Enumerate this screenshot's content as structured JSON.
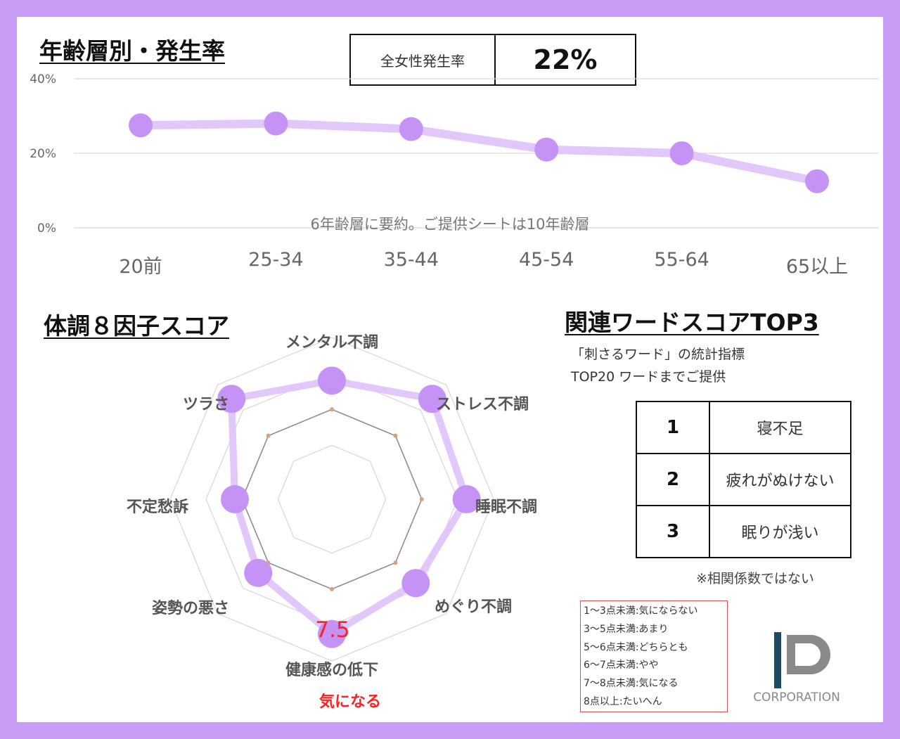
{
  "sections": {
    "age_heading": "年齢層別・発生率",
    "radar_heading": "体調８因子スコア",
    "words_heading": "関連ワードスコアTOP3"
  },
  "overall_rate": {
    "label": "全女性発生率",
    "value": "22%"
  },
  "age_note": "6年齢層に要約。ご提供シートは10年齢層",
  "words_desc": [
    "「刺さるワード」の統計指標",
    "TOP20 ワードまでご提供"
  ],
  "top_words": [
    {
      "rank": "1",
      "word": "寝不足"
    },
    {
      "rank": "2",
      "word": "疲れがぬけない"
    },
    {
      "rank": "3",
      "word": "眠りが浅い"
    }
  ],
  "words_note": "※相関係数ではない",
  "score_legend": [
    "1～3点未満:気にならない",
    "3～5点未満:あまり",
    "5～6点未満:どちらとも",
    "6～7点未満:やや",
    "7～8点未満:気になる",
    "8点以上:たいへん"
  ],
  "highlight": {
    "value_label": "7.5",
    "level_label": "気になる",
    "color": "#ff2020"
  },
  "logo": {
    "text": "CORPORATION"
  },
  "colors": {
    "accent": "#c99cf5",
    "line": "#e2c8fa",
    "point": "#c592f5"
  },
  "chart_data": [
    {
      "type": "line",
      "categories": [
        "20前",
        "25-34",
        "35-44",
        "45-54",
        "55-64",
        "65以上"
      ],
      "series": [
        {
          "values": [
            27.5,
            28,
            26.5,
            21,
            20,
            12.5
          ]
        }
      ],
      "yticks": [
        "0%",
        "20%",
        "40%"
      ],
      "ylim": [
        0,
        40
      ],
      "grid": true
    },
    {
      "type": "radar",
      "axes": [
        "メンタル不調",
        "ストレス不調",
        "睡眠不調",
        "めぐり不調",
        "健康感の低下",
        "姿勢の悪さ",
        "不定愁訴",
        "ツラさ"
      ],
      "series": [
        {
          "values": [
            6.6,
            7.9,
            7.5,
            6.6,
            7.5,
            5.8,
            5.4,
            7.9
          ]
        }
      ],
      "reference_values": [
        5,
        5,
        5,
        5,
        5,
        5,
        5,
        5
      ],
      "rings": [
        3,
        5,
        7,
        9
      ],
      "rmax": 9
    }
  ]
}
